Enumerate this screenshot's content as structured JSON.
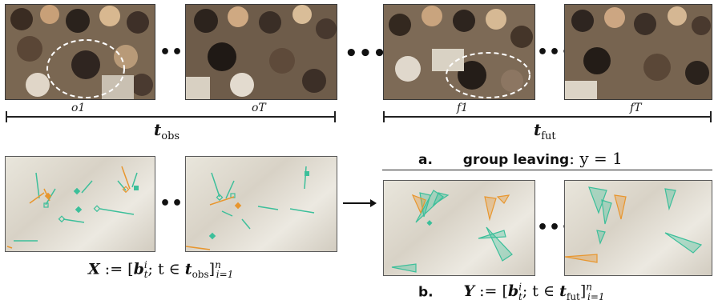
{
  "top": {
    "observed_frames": [
      {
        "label": "o1"
      },
      {
        "label": "oT"
      }
    ],
    "future_frames": [
      {
        "label": "f1"
      },
      {
        "label": "fT"
      }
    ],
    "ellipsis": "•••",
    "big_ellipsis": "•••",
    "timeline_obs": {
      "symbol": "t",
      "subscript": "obs"
    },
    "timeline_fut": {
      "symbol": "t",
      "subscript": "fut"
    }
  },
  "bottom": {
    "ellipsis": "•••",
    "input_formula": "X := [bᵢₜ; t ∈ t_obs]ⁿᵢ₌₁",
    "input_formula_parts": {
      "lhs": "X",
      "assign": " := [",
      "b": "b",
      "sup": "i",
      "sub": "t",
      "mid": "; t ∈ ",
      "t": "t",
      "tsub": "obs",
      "close": "]",
      "n": "n",
      "i1": "i=1"
    },
    "task_a": {
      "letter": "a.",
      "text": "group leaving",
      "math": ": y = 1"
    },
    "task_b": {
      "letter": "b.",
      "lhs": "Y",
      "assign": " := [",
      "b": "b",
      "sup": "i",
      "sub": "t",
      "mid": "; t ∈ ",
      "t": "t",
      "tsub": "fut",
      "close": "]",
      "n": "n",
      "i1": "i=1"
    }
  },
  "colors": {
    "teal": "#3cbf9a",
    "orange": "#e8962e",
    "frame": "#3a3a3a",
    "ellipse": "#ffffff"
  }
}
